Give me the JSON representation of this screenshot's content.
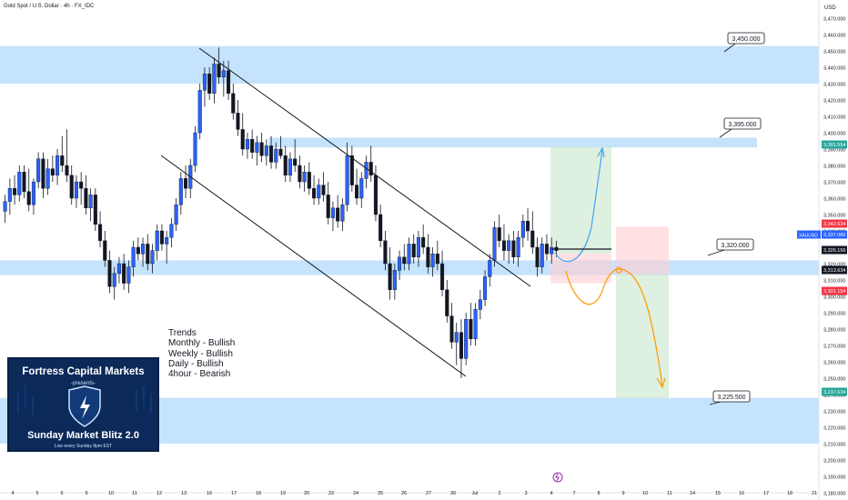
{
  "header": {
    "symbol_title": "Gold Spot / U.S. Dollar · 4h · FX_IDC",
    "currency": "USD"
  },
  "colors": {
    "up": "#2962ff",
    "down": "#131722",
    "zone": "#bbdefb",
    "green": "#26a69a",
    "red": "#f23645",
    "blue_arrow": "#42a5f5",
    "orange_arrow": "#ff9800"
  },
  "annotations": {
    "trends_lines": [
      "Trends",
      "Monthly - Bullish",
      "Weekly - Bullish",
      "Daily - Bullish",
      "4hour - Bearish"
    ],
    "logo": {
      "brand": "Fortress Capital Markets",
      "presents": "-presents-",
      "show": "Sunday Market Blitz 2.0",
      "schedule": "Live every Sunday 8pm EST"
    }
  },
  "chart_data": {
    "type": "candlestick",
    "y_axis": {
      "min": 3180,
      "max": 3470,
      "ticks": [
        3470,
        3460,
        3450,
        3440,
        3430,
        3420,
        3410,
        3400,
        3390,
        3380,
        3370,
        3360,
        3350,
        3340,
        3330,
        3320,
        3310,
        3300,
        3290,
        3280,
        3270,
        3260,
        3250,
        3240,
        3230,
        3220,
        3210,
        3200,
        3190,
        3180
      ]
    },
    "x_axis": {
      "labels": [
        "4",
        "5",
        "6",
        "9",
        "10",
        "11",
        "12",
        "13",
        "16",
        "17",
        "18",
        "19",
        "20",
        "23",
        "24",
        "25",
        "26",
        "27",
        "30",
        "Jul",
        "2",
        "3",
        "4",
        "7",
        "8",
        "9",
        "10",
        "11",
        "14",
        "15",
        "16",
        "17",
        "18",
        "21"
      ]
    },
    "price_labels": [
      {
        "text": "3,391.554",
        "kind": "green"
      },
      {
        "text": "3,342.634",
        "kind": "red"
      },
      {
        "text": "3,337.060",
        "kind": "current"
      },
      {
        "text": "3,326.156",
        "kind": "dark"
      },
      {
        "text": "3,313.634",
        "kind": "dark"
      },
      {
        "text": "3,301.154",
        "kind": "red"
      },
      {
        "text": "3,237.634",
        "kind": "green"
      }
    ],
    "symbol_tag": "XAUUSD",
    "levels": [
      {
        "label": "3,450.000",
        "from": 3430,
        "to": 3453
      },
      {
        "label": "3,395.000",
        "from": 3391,
        "to": 3397
      },
      {
        "label": "3,320.000",
        "from": 3313,
        "to": 3322
      },
      {
        "label": "3,225.500",
        "from": 3210,
        "to": 3238
      }
    ],
    "candles": [
      [
        3352,
        3362,
        3345,
        3358
      ],
      [
        3358,
        3372,
        3350,
        3366
      ],
      [
        3366,
        3374,
        3356,
        3362
      ],
      [
        3362,
        3380,
        3358,
        3376
      ],
      [
        3376,
        3380,
        3360,
        3364
      ],
      [
        3364,
        3378,
        3352,
        3356
      ],
      [
        3356,
        3372,
        3350,
        3370
      ],
      [
        3370,
        3388,
        3366,
        3384
      ],
      [
        3384,
        3388,
        3360,
        3366
      ],
      [
        3366,
        3384,
        3362,
        3378
      ],
      [
        3378,
        3386,
        3370,
        3374
      ],
      [
        3374,
        3390,
        3368,
        3386
      ],
      [
        3386,
        3398,
        3376,
        3380
      ],
      [
        3380,
        3402,
        3370,
        3374
      ],
      [
        3374,
        3380,
        3356,
        3360
      ],
      [
        3360,
        3374,
        3354,
        3370
      ],
      [
        3370,
        3376,
        3356,
        3366
      ],
      [
        3366,
        3374,
        3350,
        3354
      ],
      [
        3354,
        3366,
        3346,
        3362
      ],
      [
        3362,
        3366,
        3340,
        3344
      ],
      [
        3344,
        3352,
        3330,
        3334
      ],
      [
        3334,
        3340,
        3318,
        3322
      ],
      [
        3322,
        3328,
        3302,
        3306
      ],
      [
        3306,
        3318,
        3298,
        3314
      ],
      [
        3314,
        3324,
        3308,
        3320
      ],
      [
        3320,
        3326,
        3304,
        3308
      ],
      [
        3308,
        3322,
        3302,
        3318
      ],
      [
        3318,
        3334,
        3312,
        3330
      ],
      [
        3330,
        3336,
        3322,
        3326
      ],
      [
        3326,
        3336,
        3318,
        3332
      ],
      [
        3332,
        3338,
        3316,
        3320
      ],
      [
        3320,
        3332,
        3314,
        3328
      ],
      [
        3328,
        3344,
        3322,
        3340
      ],
      [
        3340,
        3344,
        3328,
        3332
      ],
      [
        3332,
        3340,
        3320,
        3336
      ],
      [
        3336,
        3348,
        3330,
        3344
      ],
      [
        3344,
        3360,
        3340,
        3356
      ],
      [
        3356,
        3376,
        3350,
        3372
      ],
      [
        3372,
        3380,
        3360,
        3366
      ],
      [
        3366,
        3384,
        3360,
        3380
      ],
      [
        3380,
        3404,
        3376,
        3400
      ],
      [
        3400,
        3430,
        3396,
        3426
      ],
      [
        3426,
        3440,
        3416,
        3436
      ],
      [
        3436,
        3440,
        3420,
        3424
      ],
      [
        3424,
        3446,
        3418,
        3442
      ],
      [
        3442,
        3452,
        3430,
        3434
      ],
      [
        3434,
        3444,
        3422,
        3438
      ],
      [
        3438,
        3444,
        3420,
        3424
      ],
      [
        3424,
        3430,
        3408,
        3412
      ],
      [
        3412,
        3420,
        3398,
        3402
      ],
      [
        3402,
        3412,
        3386,
        3390
      ],
      [
        3390,
        3400,
        3384,
        3396
      ],
      [
        3396,
        3402,
        3384,
        3388
      ],
      [
        3388,
        3398,
        3380,
        3394
      ],
      [
        3394,
        3400,
        3382,
        3386
      ],
      [
        3386,
        3396,
        3380,
        3392
      ],
      [
        3392,
        3398,
        3378,
        3382
      ],
      [
        3382,
        3394,
        3378,
        3390
      ],
      [
        3390,
        3398,
        3384,
        3386
      ],
      [
        3386,
        3392,
        3370,
        3374
      ],
      [
        3374,
        3388,
        3370,
        3384
      ],
      [
        3384,
        3396,
        3376,
        3380
      ],
      [
        3380,
        3386,
        3366,
        3370
      ],
      [
        3370,
        3380,
        3364,
        3376
      ],
      [
        3376,
        3382,
        3362,
        3366
      ],
      [
        3366,
        3374,
        3356,
        3360
      ],
      [
        3360,
        3372,
        3356,
        3368
      ],
      [
        3368,
        3376,
        3358,
        3362
      ],
      [
        3362,
        3370,
        3344,
        3348
      ],
      [
        3348,
        3358,
        3340,
        3354
      ],
      [
        3354,
        3362,
        3342,
        3346
      ],
      [
        3346,
        3360,
        3340,
        3356
      ],
      [
        3356,
        3394,
        3352,
        3386
      ],
      [
        3386,
        3392,
        3364,
        3368
      ],
      [
        3368,
        3378,
        3356,
        3360
      ],
      [
        3360,
        3376,
        3354,
        3372
      ],
      [
        3372,
        3386,
        3366,
        3382
      ],
      [
        3382,
        3392,
        3370,
        3374
      ],
      [
        3374,
        3380,
        3346,
        3350
      ],
      [
        3350,
        3356,
        3330,
        3334
      ],
      [
        3334,
        3340,
        3316,
        3320
      ],
      [
        3320,
        3330,
        3298,
        3304
      ],
      [
        3304,
        3320,
        3298,
        3316
      ],
      [
        3316,
        3328,
        3310,
        3324
      ],
      [
        3324,
        3332,
        3316,
        3320
      ],
      [
        3320,
        3336,
        3316,
        3332
      ],
      [
        3332,
        3338,
        3320,
        3324
      ],
      [
        3324,
        3340,
        3318,
        3336
      ],
      [
        3336,
        3344,
        3326,
        3330
      ],
      [
        3330,
        3338,
        3314,
        3318
      ],
      [
        3318,
        3330,
        3312,
        3326
      ],
      [
        3326,
        3334,
        3316,
        3320
      ],
      [
        3320,
        3328,
        3300,
        3304
      ],
      [
        3304,
        3310,
        3284,
        3288
      ],
      [
        3288,
        3296,
        3268,
        3272
      ],
      [
        3272,
        3284,
        3258,
        3278
      ],
      [
        3278,
        3286,
        3250,
        3262
      ],
      [
        3262,
        3290,
        3258,
        3286
      ],
      [
        3286,
        3296,
        3270,
        3274
      ],
      [
        3274,
        3296,
        3270,
        3292
      ],
      [
        3292,
        3304,
        3286,
        3298
      ],
      [
        3298,
        3316,
        3294,
        3312
      ],
      [
        3312,
        3326,
        3306,
        3322
      ],
      [
        3322,
        3346,
        3318,
        3342
      ],
      [
        3342,
        3350,
        3330,
        3334
      ],
      [
        3334,
        3344,
        3322,
        3328
      ],
      [
        3328,
        3338,
        3320,
        3334
      ],
      [
        3334,
        3340,
        3320,
        3324
      ],
      [
        3324,
        3340,
        3318,
        3336
      ],
      [
        3336,
        3350,
        3330,
        3346
      ],
      [
        3346,
        3354,
        3334,
        3340
      ],
      [
        3340,
        3352,
        3326,
        3330
      ],
      [
        3330,
        3336,
        3312,
        3318
      ],
      [
        3318,
        3336,
        3314,
        3332
      ],
      [
        3332,
        3338,
        3322,
        3326
      ],
      [
        3326,
        3336,
        3320,
        3330
      ],
      [
        3330,
        3334,
        3324,
        3328
      ]
    ],
    "trade_setups": [
      {
        "direction": "long",
        "entry": 3326.156,
        "target": 3391.554,
        "stop": 3313.634
      },
      {
        "direction": "short",
        "entry": 3313.634,
        "target": 3237.634,
        "stop": 3342.634
      }
    ]
  }
}
